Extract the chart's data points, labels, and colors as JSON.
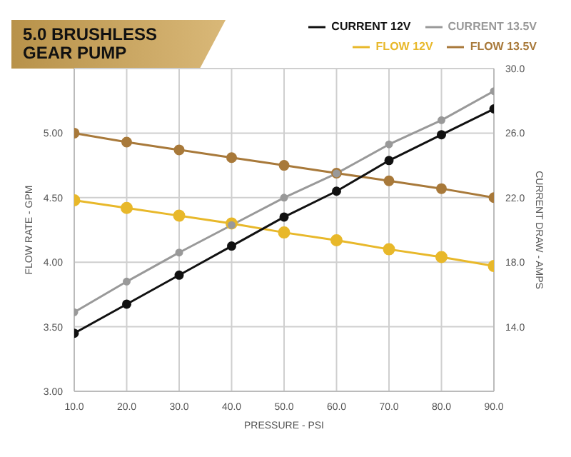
{
  "chart_data": {
    "type": "line",
    "title": "5.0 BRUSHLESS GEAR PUMP",
    "xlabel": "PRESSURE - PSI",
    "ylabel": "FLOW RATE - GPM",
    "y2label": "CURRENT DRAW - AMPS",
    "x": [
      10,
      20,
      30,
      40,
      50,
      60,
      70,
      80,
      90
    ],
    "series": [
      {
        "name": "FLOW 12V",
        "color": "#e8b82a",
        "values": [
          4.48,
          4.42,
          4.36,
          4.3,
          4.23,
          4.17,
          4.1,
          4.04,
          3.97
        ]
      },
      {
        "name": "FLOW 13.5V",
        "color": "#a8793a",
        "values": [
          5.0,
          4.93,
          4.87,
          4.81,
          4.75,
          4.69,
          4.63,
          4.57,
          4.5
        ]
      },
      {
        "name": "CURRENT 12V",
        "color": "#111111",
        "axis": "y2",
        "values": [
          13.6,
          15.4,
          17.2,
          19.0,
          20.8,
          22.4,
          24.3,
          25.9,
          27.5
        ]
      },
      {
        "name": "CURRENT 13.5V",
        "color": "#999999",
        "axis": "y2",
        "values": [
          14.9,
          16.8,
          18.6,
          20.3,
          22.0,
          23.5,
          25.3,
          26.8,
          28.6
        ]
      }
    ],
    "xlim": [
      10,
      90
    ],
    "xticks": [
      {
        "value": 10,
        "label": "10.0"
      },
      {
        "value": 20,
        "label": "20.0"
      },
      {
        "value": 30,
        "label": "30.0"
      },
      {
        "value": 40,
        "label": "40.0"
      },
      {
        "value": 50,
        "label": "50.0"
      },
      {
        "value": 60,
        "label": "60.0"
      },
      {
        "value": 70,
        "label": "70.0"
      },
      {
        "value": 80,
        "label": "80.0"
      },
      {
        "value": 90,
        "label": "90.0"
      }
    ],
    "ylim": [
      3,
      5.5
    ],
    "yticks": [
      {
        "value": 3,
        "label": "3.00"
      },
      {
        "value": 3.5,
        "label": "3.50"
      },
      {
        "value": 4,
        "label": "4.00"
      },
      {
        "value": 4.5,
        "label": "4.50"
      },
      {
        "value": 5,
        "label": "5.00"
      },
      {
        "value": 5.5,
        "label": null
      }
    ],
    "y2lim": [
      10,
      30
    ],
    "y2ticks": [
      {
        "value": 10,
        "label": null
      },
      {
        "value": 14,
        "label": "14.0"
      },
      {
        "value": 18,
        "label": "18.0"
      },
      {
        "value": 22,
        "label": "22.0"
      },
      {
        "value": 26,
        "label": "26.0"
      },
      {
        "value": 30,
        "label": "30.0"
      }
    ],
    "grid": true,
    "legend": "top right",
    "marker": "circle",
    "line_style": "solid"
  }
}
